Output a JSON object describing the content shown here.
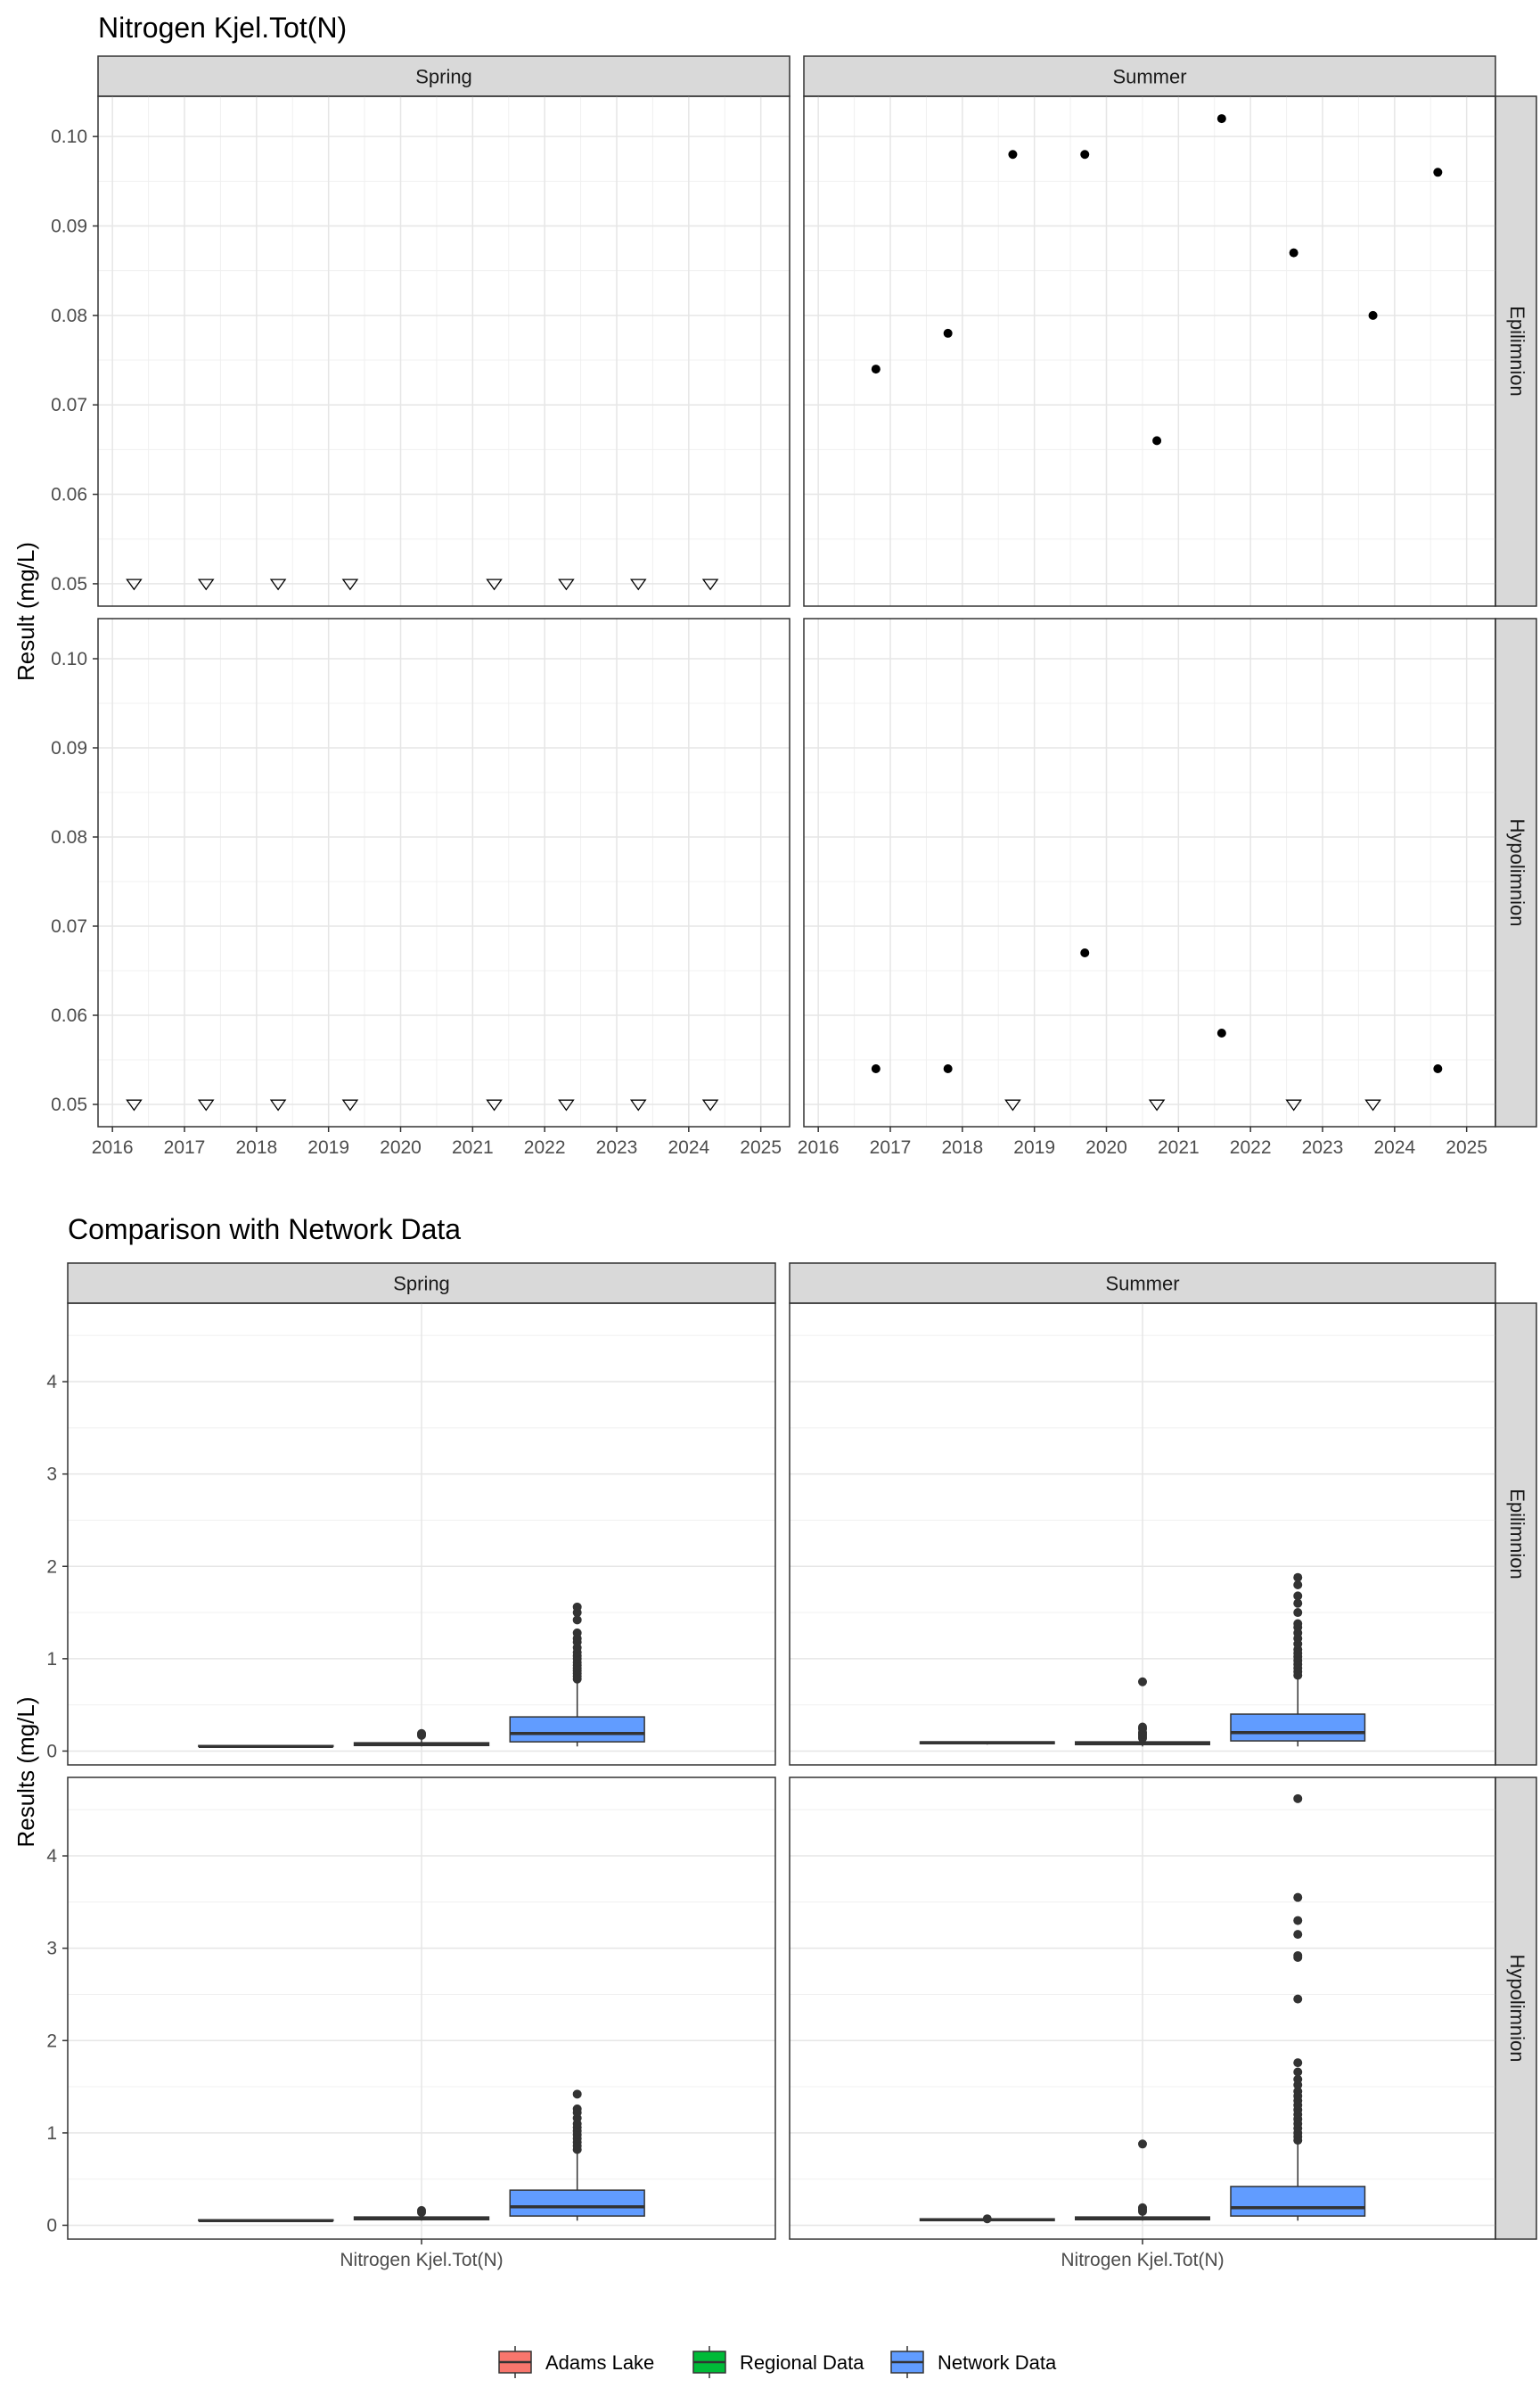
{
  "chart_data": [
    {
      "type": "scatter",
      "title": "Nitrogen Kjel.Tot(N)",
      "ylabel": "Result (mg/L)",
      "xlabel": "",
      "column_facets": [
        "Spring",
        "Summer"
      ],
      "row_facets": [
        "Epilimnion",
        "Hypolimnion"
      ],
      "xlim": [
        2015.8,
        2025.4
      ],
      "ylim": [
        0.0475,
        0.1045
      ],
      "x_ticks": [
        "2016",
        "2017",
        "2018",
        "2019",
        "2020",
        "2021",
        "2022",
        "2023",
        "2024",
        "2025"
      ],
      "y_ticks": [
        "0.05",
        "0.06",
        "0.07",
        "0.08",
        "0.09",
        "0.10"
      ],
      "grid": true,
      "panels": [
        {
          "col": "Spring",
          "row": "Epilimnion",
          "detected": [],
          "below_detection": [
            {
              "x": 2016.3,
              "y": 0.05
            },
            {
              "x": 2017.3,
              "y": 0.05
            },
            {
              "x": 2018.3,
              "y": 0.05
            },
            {
              "x": 2019.3,
              "y": 0.05
            },
            {
              "x": 2021.3,
              "y": 0.05
            },
            {
              "x": 2022.3,
              "y": 0.05
            },
            {
              "x": 2023.3,
              "y": 0.05
            },
            {
              "x": 2024.3,
              "y": 0.05
            }
          ]
        },
        {
          "col": "Summer",
          "row": "Epilimnion",
          "detected": [
            {
              "x": 2016.8,
              "y": 0.074
            },
            {
              "x": 2017.8,
              "y": 0.078
            },
            {
              "x": 2018.7,
              "y": 0.098
            },
            {
              "x": 2019.7,
              "y": 0.098
            },
            {
              "x": 2020.7,
              "y": 0.066
            },
            {
              "x": 2021.6,
              "y": 0.102
            },
            {
              "x": 2022.6,
              "y": 0.087
            },
            {
              "x": 2023.7,
              "y": 0.08
            },
            {
              "x": 2024.6,
              "y": 0.096
            }
          ],
          "below_detection": []
        },
        {
          "col": "Spring",
          "row": "Hypolimnion",
          "detected": [],
          "below_detection": [
            {
              "x": 2016.3,
              "y": 0.05
            },
            {
              "x": 2017.3,
              "y": 0.05
            },
            {
              "x": 2018.3,
              "y": 0.05
            },
            {
              "x": 2019.3,
              "y": 0.05
            },
            {
              "x": 2021.3,
              "y": 0.05
            },
            {
              "x": 2022.3,
              "y": 0.05
            },
            {
              "x": 2023.3,
              "y": 0.05
            },
            {
              "x": 2024.3,
              "y": 0.05
            }
          ]
        },
        {
          "col": "Summer",
          "row": "Hypolimnion",
          "detected": [
            {
              "x": 2016.8,
              "y": 0.054
            },
            {
              "x": 2017.8,
              "y": 0.054
            },
            {
              "x": 2019.7,
              "y": 0.067
            },
            {
              "x": 2021.6,
              "y": 0.058
            },
            {
              "x": 2024.6,
              "y": 0.054
            }
          ],
          "below_detection": [
            {
              "x": 2018.7,
              "y": 0.05
            },
            {
              "x": 2020.7,
              "y": 0.05
            },
            {
              "x": 2022.6,
              "y": 0.05
            },
            {
              "x": 2023.7,
              "y": 0.05
            }
          ]
        }
      ]
    },
    {
      "type": "box",
      "title": "Comparison with Network Data",
      "ylabel": "Results (mg/L)",
      "xlabel": "",
      "category": "Nitrogen Kjel.Tot(N)",
      "column_facets": [
        "Spring",
        "Summer"
      ],
      "row_facets": [
        "Epilimnion",
        "Hypolimnion"
      ],
      "ylim": [
        -0.15,
        4.85
      ],
      "y_ticks": [
        "0",
        "1",
        "2",
        "3",
        "4"
      ],
      "grid": true,
      "legend": {
        "position": "bottom",
        "entries": [
          {
            "name": "Adams Lake",
            "color": "#f8766d"
          },
          {
            "name": "Regional Data",
            "color": "#00ba38"
          },
          {
            "name": "Network Data",
            "color": "#619cff"
          }
        ]
      },
      "series_order": [
        "Adams Lake",
        "Regional Data",
        "Network Data"
      ],
      "panels": [
        {
          "col": "Spring",
          "row": "Epilimnion",
          "boxes": [
            {
              "q1": 0.05,
              "median": 0.05,
              "q3": 0.05,
              "whisker_low": 0.05,
              "whisker_high": 0.05,
              "outliers": []
            },
            {
              "q1": 0.06,
              "median": 0.07,
              "q3": 0.09,
              "whisker_low": 0.05,
              "whisker_high": 0.13,
              "outliers": [
                0.17,
                0.18,
                0.19
              ]
            },
            {
              "q1": 0.1,
              "median": 0.19,
              "q3": 0.37,
              "whisker_low": 0.05,
              "whisker_high": 0.75,
              "outliers": [
                0.78,
                0.81,
                0.84,
                0.87,
                0.9,
                0.93,
                0.96,
                1.0,
                1.03,
                1.07,
                1.12,
                1.18,
                1.22,
                1.28,
                1.42,
                1.5,
                1.56
              ]
            }
          ]
        },
        {
          "col": "Summer",
          "row": "Epilimnion",
          "boxes": [
            {
              "q1": 0.08,
              "median": 0.09,
              "q3": 0.1,
              "whisker_low": 0.07,
              "whisker_high": 0.1,
              "outliers": []
            },
            {
              "q1": 0.07,
              "median": 0.08,
              "q3": 0.1,
              "whisker_low": 0.05,
              "whisker_high": 0.13,
              "outliers": [
                0.14,
                0.16,
                0.18,
                0.2,
                0.24,
                0.26,
                0.75
              ]
            },
            {
              "q1": 0.11,
              "median": 0.2,
              "q3": 0.4,
              "whisker_low": 0.05,
              "whisker_high": 0.8,
              "outliers": [
                0.82,
                0.86,
                0.9,
                0.94,
                0.98,
                1.02,
                1.06,
                1.1,
                1.16,
                1.22,
                1.28,
                1.34,
                1.38,
                1.5,
                1.6,
                1.68,
                1.8,
                1.88
              ]
            }
          ]
        },
        {
          "col": "Spring",
          "row": "Hypolimnion",
          "boxes": [
            {
              "q1": 0.05,
              "median": 0.05,
              "q3": 0.05,
              "whisker_low": 0.05,
              "whisker_high": 0.05,
              "outliers": []
            },
            {
              "q1": 0.06,
              "median": 0.07,
              "q3": 0.09,
              "whisker_low": 0.05,
              "whisker_high": 0.12,
              "outliers": [
                0.14,
                0.16
              ]
            },
            {
              "q1": 0.1,
              "median": 0.2,
              "q3": 0.38,
              "whisker_low": 0.05,
              "whisker_high": 0.8,
              "outliers": [
                0.82,
                0.86,
                0.9,
                0.94,
                0.98,
                1.02,
                1.06,
                1.1,
                1.16,
                1.22,
                1.26,
                1.42
              ]
            }
          ]
        },
        {
          "col": "Summer",
          "row": "Hypolimnion",
          "boxes": [
            {
              "q1": 0.05,
              "median": 0.06,
              "q3": 0.07,
              "whisker_low": 0.05,
              "whisker_high": 0.07,
              "outliers": [
                0.07
              ]
            },
            {
              "q1": 0.06,
              "median": 0.07,
              "q3": 0.09,
              "whisker_low": 0.05,
              "whisker_high": 0.13,
              "outliers": [
                0.15,
                0.17,
                0.19,
                0.88
              ]
            },
            {
              "q1": 0.1,
              "median": 0.19,
              "q3": 0.42,
              "whisker_low": 0.05,
              "whisker_high": 0.88,
              "outliers": [
                0.92,
                0.96,
                1.0,
                1.05,
                1.1,
                1.15,
                1.2,
                1.25,
                1.3,
                1.35,
                1.4,
                1.45,
                1.52,
                1.58,
                1.66,
                1.76,
                2.45,
                2.9,
                2.92,
                3.15,
                3.3,
                3.55,
                4.62
              ]
            }
          ]
        }
      ]
    }
  ]
}
